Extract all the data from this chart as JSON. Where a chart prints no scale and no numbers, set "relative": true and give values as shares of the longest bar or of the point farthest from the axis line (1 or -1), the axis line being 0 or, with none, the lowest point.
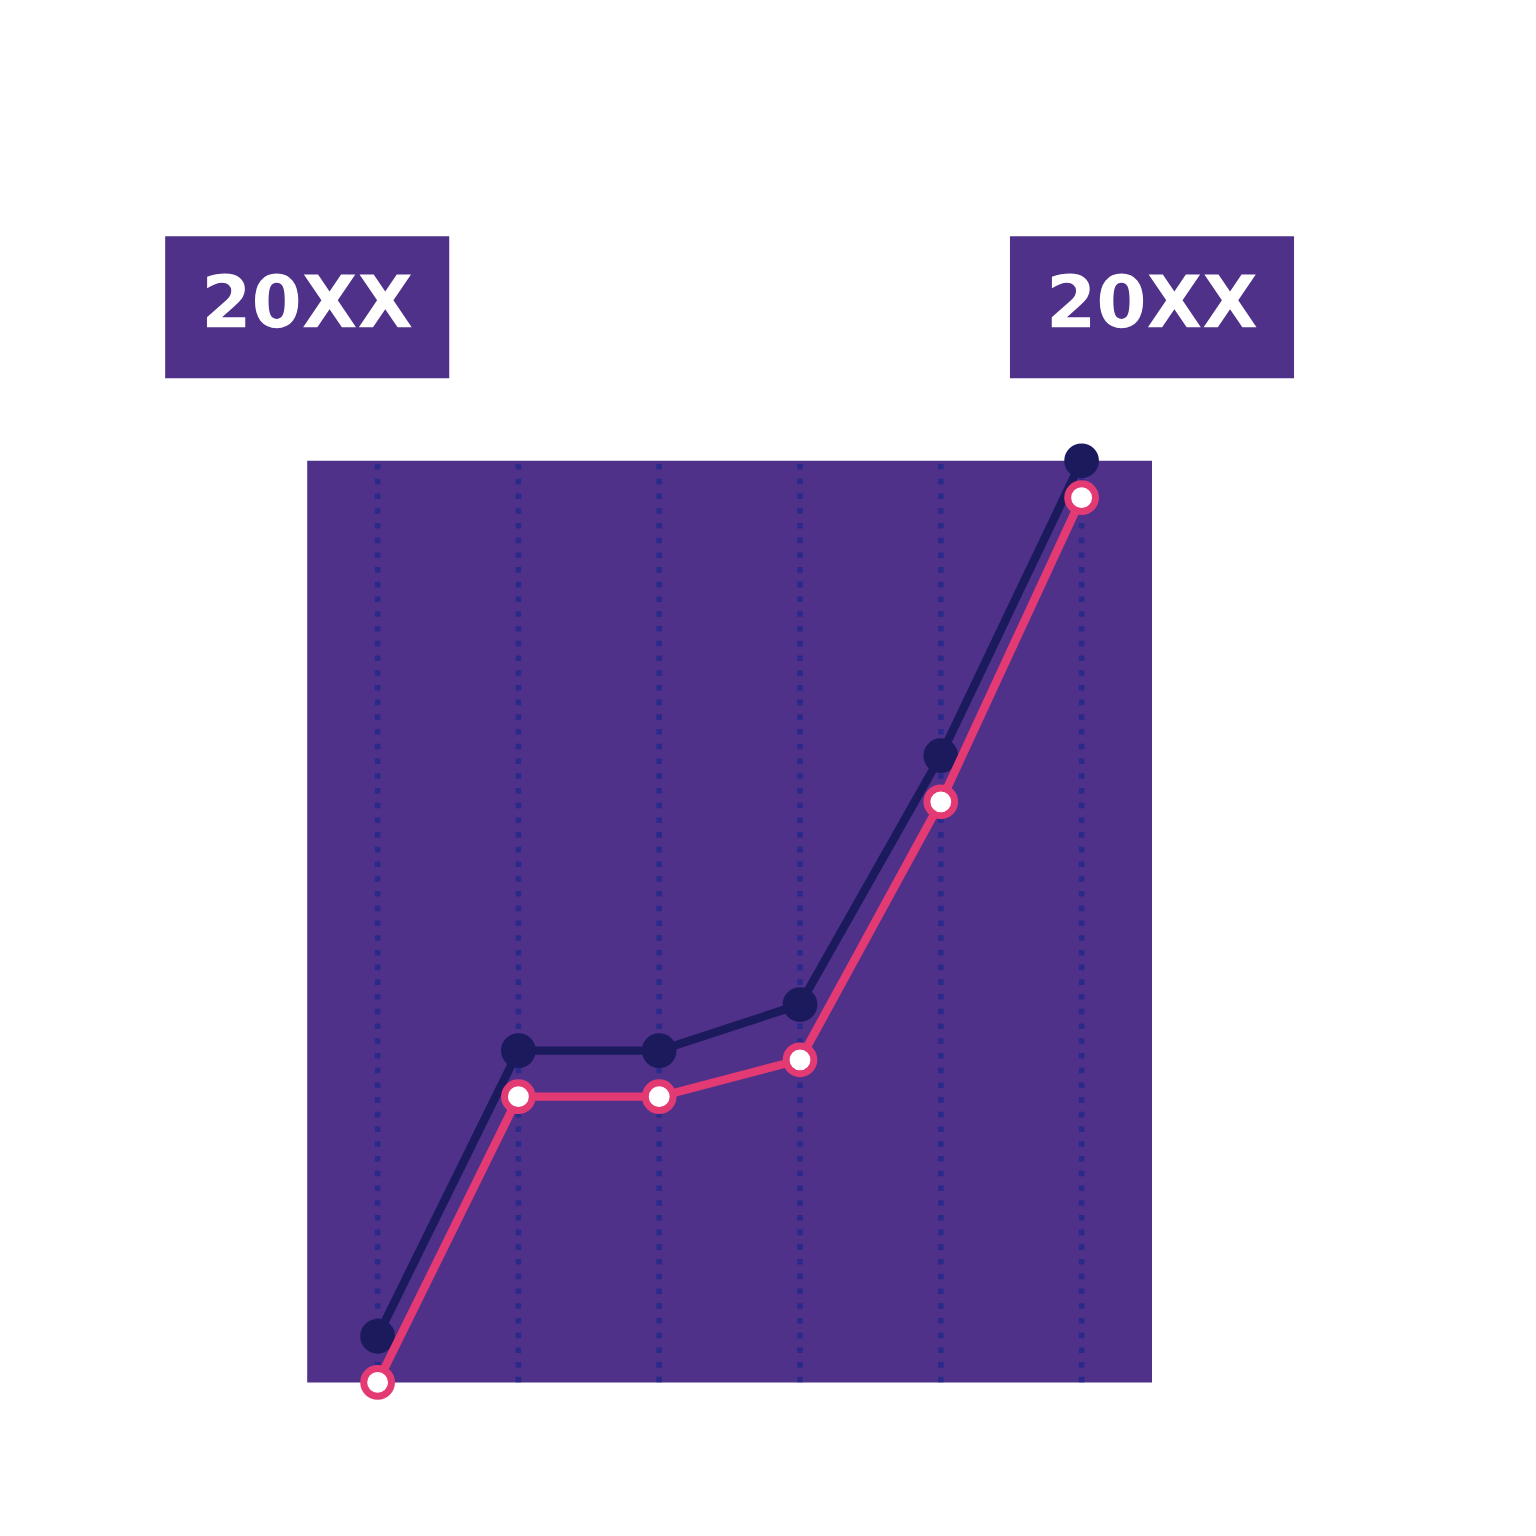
{
  "chart_data": {
    "type": "line",
    "relative": true,
    "categories": [
      null,
      null,
      null,
      null,
      null,
      null
    ],
    "series": [
      {
        "color": "#1b1a5c",
        "values": [
          0.05,
          0.36,
          0.36,
          0.41,
          0.68,
          1.0
        ]
      },
      {
        "color": "#e43a74",
        "values": [
          0.0,
          0.31,
          0.31,
          0.35,
          0.63,
          0.96
        ]
      }
    ],
    "marker": "circle",
    "line_style": "solid",
    "grid": "x",
    "annotations": [
      "20XX",
      "20XX"
    ]
  }
}
